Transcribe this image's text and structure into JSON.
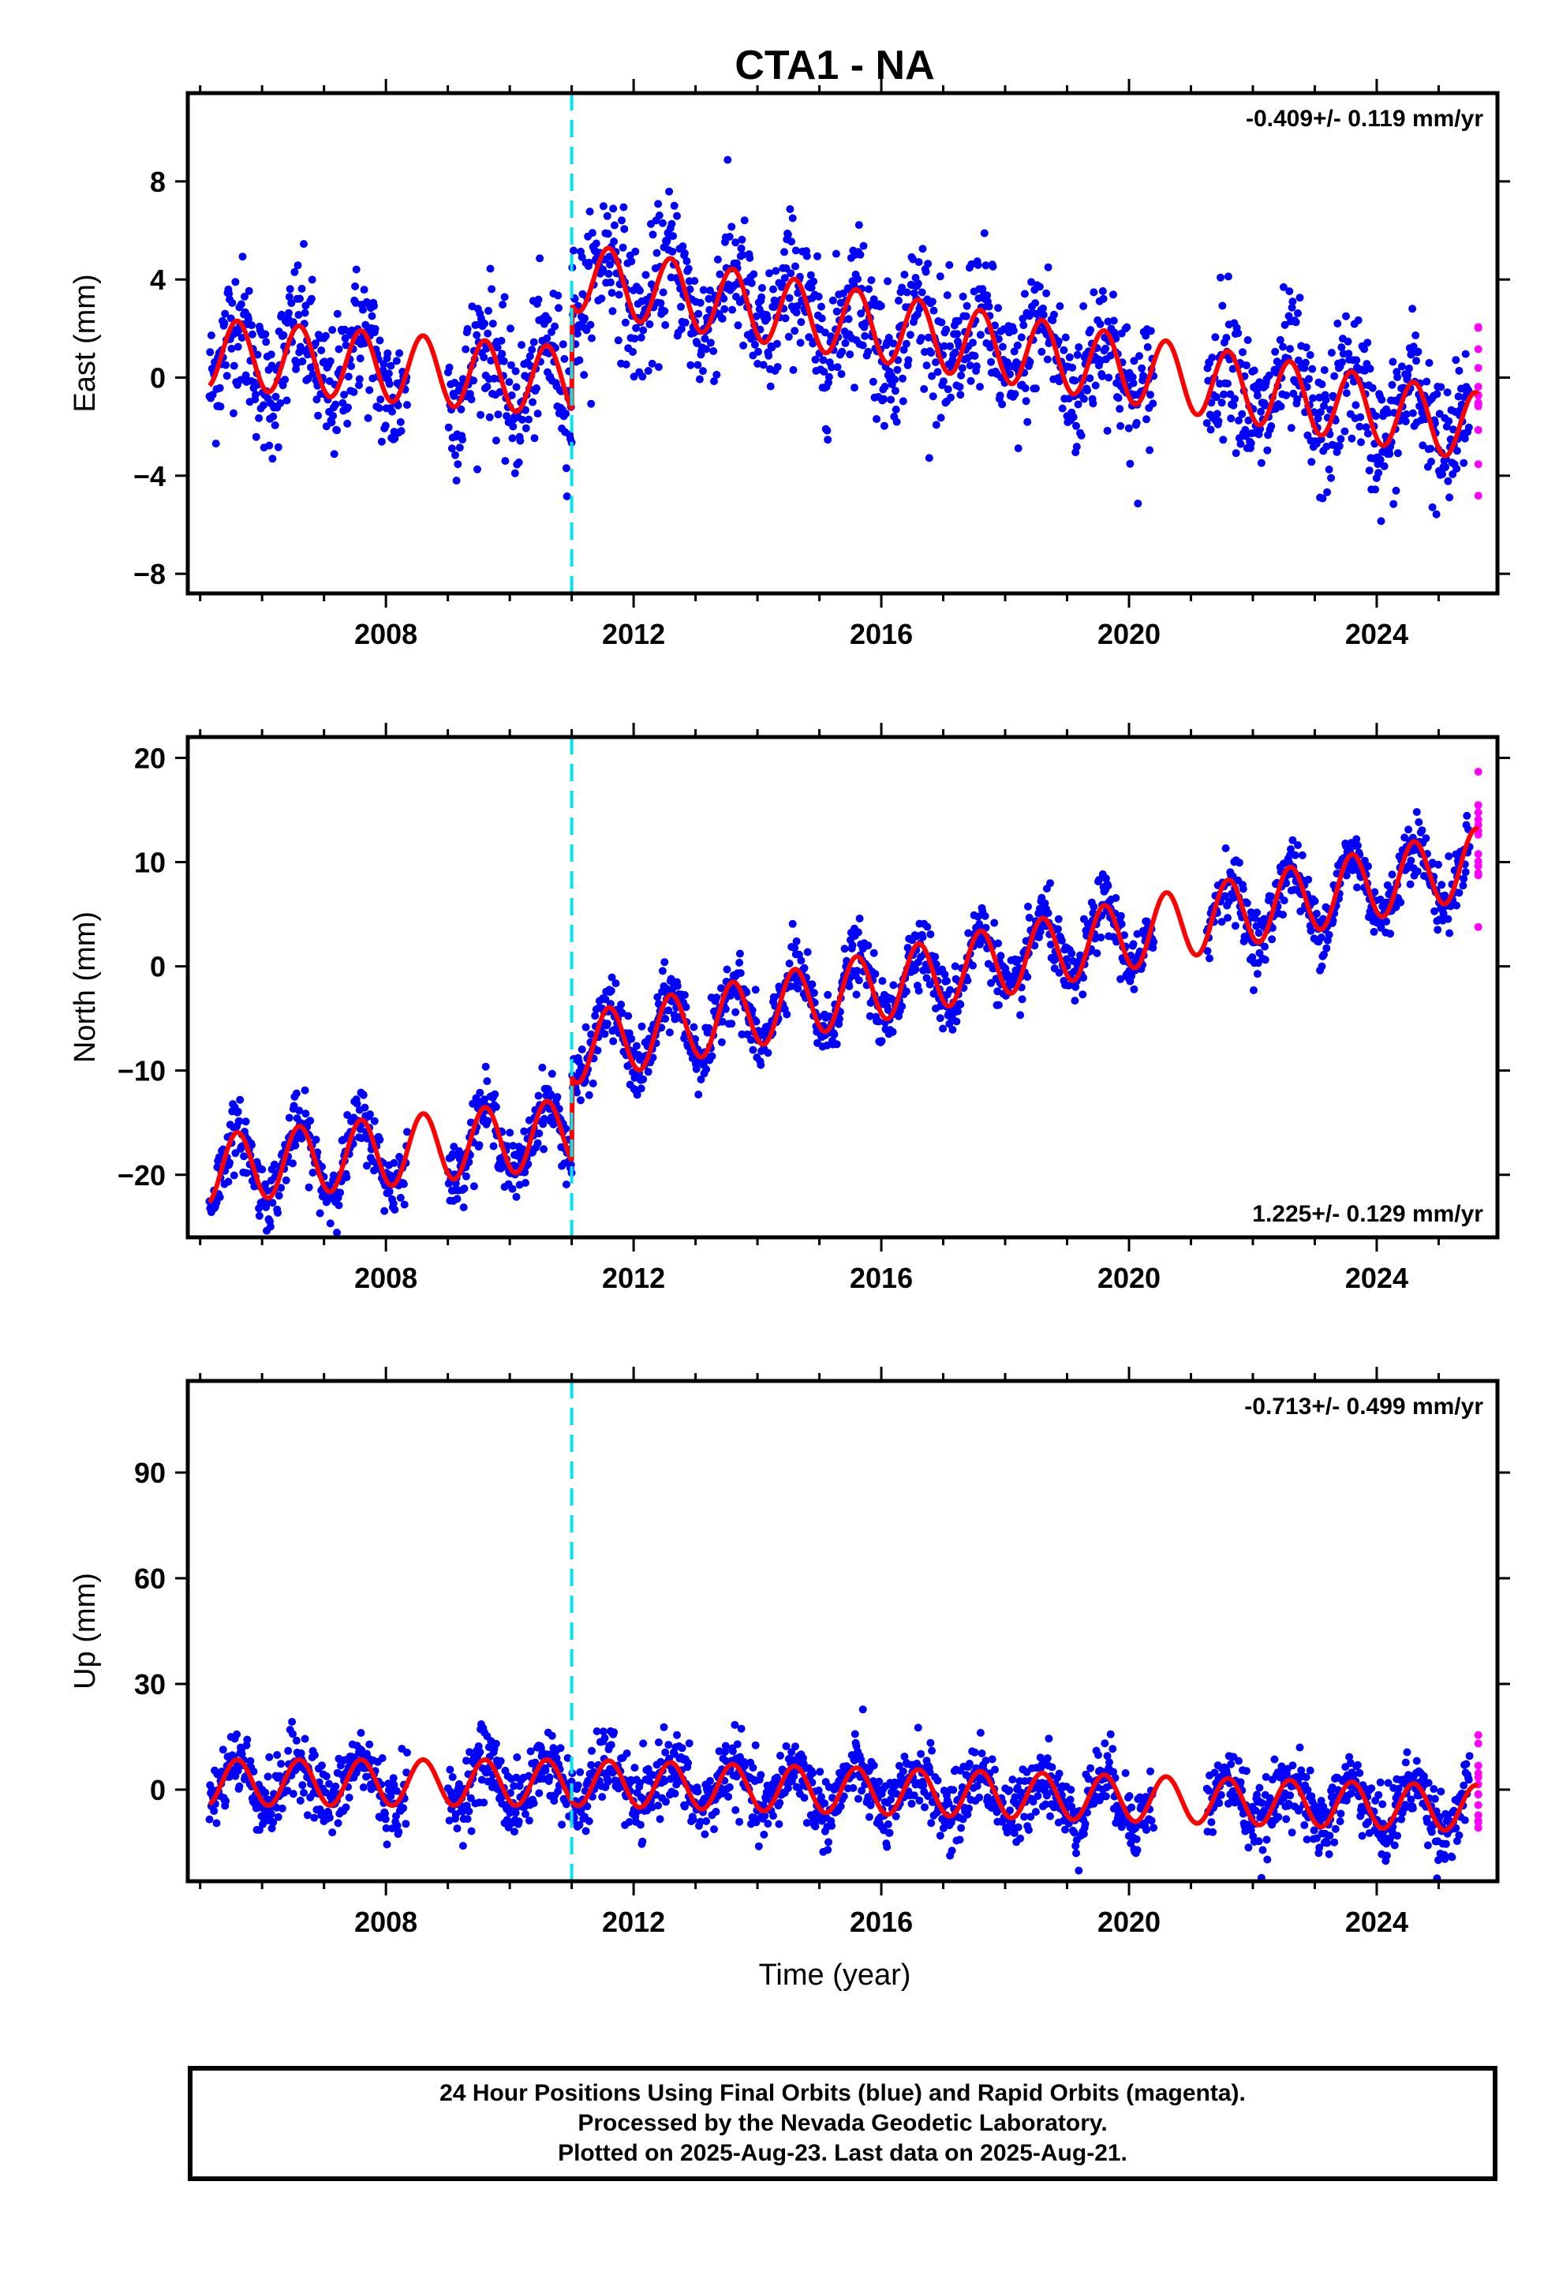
{
  "chart_data": {
    "title": "CTA1 - NA",
    "type": "scatter",
    "x_range": [
      2004.8,
      2025.95
    ],
    "x_ticks": [
      2008,
      2012,
      2016,
      2020,
      2024
    ],
    "x_tick_labels": [
      "2008",
      "2012",
      "2016",
      "2020",
      "2024"
    ],
    "x_label": "Time (year)",
    "offset_epoch": 2011.0,
    "colors": {
      "final_orbits": "#0000ff",
      "rapid_orbits": "#ff00ff",
      "model": "#ff0000",
      "offset_line": "#00e5ee"
    },
    "panels": [
      {
        "id": "east",
        "ylabel": "East (mm)",
        "yrange": [
          -8.8,
          11.6
        ],
        "yticks": [
          -8,
          -4,
          0,
          4,
          8
        ],
        "ytick_labels": [
          "−8",
          "−4",
          "0",
          "4",
          "8"
        ],
        "velocity_label": "-0.409+/- 0.119 mm/yr",
        "velocity_position": "top-right",
        "rate": -0.409,
        "model": {
          "level_start": 1.0,
          "rate_pre": -0.2,
          "offset_jump": 4.3,
          "rate_post": -0.42,
          "annual_amplitude": 1.4,
          "scatter": 1.4
        }
      },
      {
        "id": "north",
        "ylabel": "North (mm)",
        "yrange": [
          -26,
          22
        ],
        "yticks": [
          -20,
          -10,
          0,
          10,
          20
        ],
        "ytick_labels": [
          "−20",
          "−10",
          "0",
          "10",
          "20"
        ],
        "velocity_label": "1.225+/- 0.129 mm/yr",
        "velocity_position": "bottom-right",
        "rate": 1.225,
        "model": {
          "level_start": -19.5,
          "rate_pre": 0.6,
          "offset_jump": 8.0,
          "rate_post": 1.225,
          "annual_amplitude": 3.3,
          "scatter": 1.5
        }
      },
      {
        "id": "up",
        "ylabel": "Up (mm)",
        "yrange": [
          -26,
          116
        ],
        "yticks": [
          0,
          30,
          60,
          90
        ],
        "ytick_labels": [
          "0",
          "30",
          "60",
          "90"
        ],
        "velocity_label": "-0.713+/- 0.499 mm/yr",
        "velocity_position": "top-right",
        "rate": -0.713,
        "model": {
          "level_start": 2.0,
          "rate_pre": 0.0,
          "offset_jump": 0.0,
          "rate_post": -0.5,
          "annual_amplitude": 6.5,
          "scatter": 5.0
        }
      }
    ],
    "data_span": [
      2005.15,
      2025.64
    ],
    "rapid_orbit_span": [
      2025.5,
      2025.64
    ],
    "data_gaps": [
      [
        2008.35,
        2009.0
      ],
      [
        2020.4,
        2021.25
      ]
    ],
    "footer_lines": [
      "24 Hour Positions Using Final Orbits (blue) and Rapid Orbits (magenta).",
      "Processed by the Nevada Geodetic Laboratory.",
      "Plotted on 2025-Aug-23. Last data on 2025-Aug-21."
    ]
  }
}
